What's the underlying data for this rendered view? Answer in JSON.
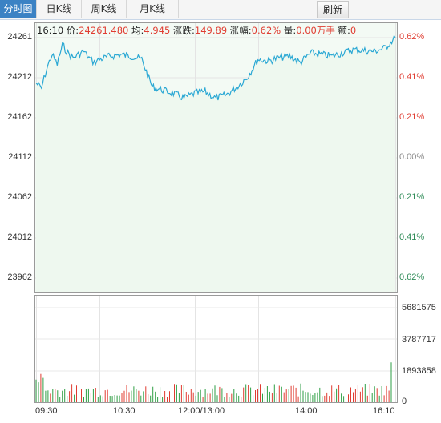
{
  "tabs": [
    {
      "label": "分时图",
      "active": true
    },
    {
      "label": "日K线",
      "active": false
    },
    {
      "label": "周K线",
      "active": false
    },
    {
      "label": "月K线",
      "active": false
    }
  ],
  "refresh_label": "刷新",
  "info": {
    "time": "16:10",
    "price_label": "价:",
    "price": "24261.480",
    "avg_label": "均:",
    "avg": "4.945",
    "change_label": "涨跌:",
    "change": "149.89",
    "pct_label": "涨幅:",
    "pct": "0.62%",
    "vol_label": "量:",
    "vol": "0.00万手",
    "amt_label": "额:",
    "amt": "0"
  },
  "colors": {
    "line": "#2aa8d4",
    "fill": "#eef8ef",
    "up": "#e03c31",
    "down": "#2e8b57",
    "vol_up": "#e03c31",
    "vol_down": "#2e9e44"
  },
  "chart_data": [
    {
      "type": "line",
      "title": "",
      "x_ticks": [
        "09:30",
        "10:30",
        "12:00/13:00",
        "14:00",
        "16:10"
      ],
      "y_ticks_left": [
        "24261",
        "24212",
        "24162",
        "24112",
        "24062",
        "24012",
        "23962"
      ],
      "y_ticks_right": [
        "0.62%",
        "0.41%",
        "0.21%",
        "0.00%",
        "0.21%",
        "0.41%",
        "0.62%"
      ],
      "ylim": [
        23962,
        24261
      ],
      "points": [
        {
          "x": "09:30",
          "y": 24205
        },
        {
          "x": "09:35",
          "y": 24198
        },
        {
          "x": "09:40",
          "y": 24222
        },
        {
          "x": "09:45",
          "y": 24240
        },
        {
          "x": "09:50",
          "y": 24228
        },
        {
          "x": "09:55",
          "y": 24252
        },
        {
          "x": "10:00",
          "y": 24242
        },
        {
          "x": "10:05",
          "y": 24236
        },
        {
          "x": "10:10",
          "y": 24240
        },
        {
          "x": "10:15",
          "y": 24244
        },
        {
          "x": "10:20",
          "y": 24236
        },
        {
          "x": "10:25",
          "y": 24230
        },
        {
          "x": "10:30",
          "y": 24234
        },
        {
          "x": "10:40",
          "y": 24238
        },
        {
          "x": "10:50",
          "y": 24240
        },
        {
          "x": "11:00",
          "y": 24238
        },
        {
          "x": "11:10",
          "y": 24234
        },
        {
          "x": "11:20",
          "y": 24200
        },
        {
          "x": "11:30",
          "y": 24196
        },
        {
          "x": "11:40",
          "y": 24192
        },
        {
          "x": "11:50",
          "y": 24186
        },
        {
          "x": "12:00/13:00",
          "y": 24192
        },
        {
          "x": "13:10",
          "y": 24194
        },
        {
          "x": "13:20",
          "y": 24186
        },
        {
          "x": "13:30",
          "y": 24190
        },
        {
          "x": "13:40",
          "y": 24200
        },
        {
          "x": "13:50",
          "y": 24212
        },
        {
          "x": "14:00",
          "y": 24234
        },
        {
          "x": "14:10",
          "y": 24232
        },
        {
          "x": "14:20",
          "y": 24236
        },
        {
          "x": "14:30",
          "y": 24238
        },
        {
          "x": "14:40",
          "y": 24230
        },
        {
          "x": "14:50",
          "y": 24242
        },
        {
          "x": "15:10",
          "y": 24238
        },
        {
          "x": "15:30",
          "y": 24246
        },
        {
          "x": "15:50",
          "y": 24244
        },
        {
          "x": "16:00",
          "y": 24248
        },
        {
          "x": "16:10",
          "y": 24261
        }
      ]
    },
    {
      "type": "bar",
      "title": "",
      "y_ticks": [
        "5681575",
        "3787717",
        "1893858",
        "0"
      ],
      "ylim": [
        0,
        5681575
      ],
      "last_bar_value": 2400000,
      "typical_bar_value": 900000
    }
  ]
}
